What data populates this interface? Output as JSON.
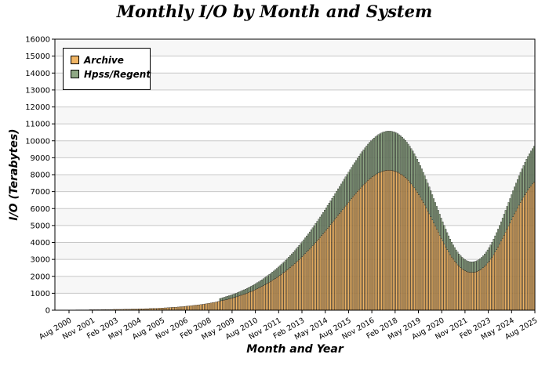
{
  "colors": {
    "archive": "#f0b565",
    "hpss": "#8fa885",
    "band_light": "#f7f7f7",
    "band_white": "#ffffff",
    "grid": "#c8c8c8"
  },
  "chart_data": {
    "type": "bar",
    "stacked": true,
    "title": "Monthly I/O by Month and System",
    "xlabel": "Month and Year",
    "ylabel": "I/O (Terabytes)",
    "ylim": [
      0,
      16000
    ],
    "yticks": [
      0,
      1000,
      2000,
      3000,
      4000,
      5000,
      6000,
      7000,
      8000,
      9000,
      10000,
      11000,
      12000,
      13000,
      14000,
      15000,
      16000
    ],
    "legend_position": "top-left",
    "x_tick_labels": [
      "Aug 2000",
      "Nov 2001",
      "Feb 2003",
      "May 2004",
      "Aug 2005",
      "Nov 2006",
      "Feb 2008",
      "May 2009",
      "Aug 2010",
      "Nov 2011",
      "Feb 2013",
      "May 2014",
      "Aug 2015",
      "Nov 2016",
      "Feb 2018",
      "May 2019",
      "Aug 2020",
      "Nov 2021",
      "Feb 2023",
      "May 2024",
      "Aug 2025"
    ],
    "x_start": "2000-08",
    "x_end": "2025-08",
    "series": [
      {
        "name": "Archive",
        "color": "#f0b565",
        "values": [
          0,
          0,
          0,
          0,
          10,
          10,
          10,
          10,
          10,
          10,
          10,
          10,
          10,
          10,
          20,
          20,
          20,
          20,
          20,
          20,
          20,
          20,
          20,
          30,
          30,
          30,
          30,
          30,
          30,
          30,
          30,
          40,
          40,
          40,
          40,
          40,
          40,
          40,
          40,
          50,
          50,
          50,
          50,
          50,
          50,
          50,
          60,
          60,
          60,
          60,
          60,
          70,
          70,
          70,
          70,
          70,
          80,
          80,
          80,
          80,
          90,
          90,
          90,
          100,
          100,
          100,
          110,
          110,
          110,
          120,
          120,
          130,
          130,
          140,
          140,
          150,
          150,
          160,
          170,
          170,
          180,
          180,
          190,
          200,
          210,
          210,
          220,
          230,
          240,
          250,
          260,
          270,
          280,
          290,
          300,
          310,
          320,
          330,
          340,
          360,
          370,
          380,
          400,
          410,
          430,
          450,
          460,
          480,
          500,
          520,
          540,
          560,
          580,
          600,
          620,
          640,
          670,
          690,
          710,
          740,
          760,
          790,
          820,
          850,
          880,
          910,
          940,
          970,
          1000,
          1040,
          1070,
          1110,
          1150,
          1190,
          1230,
          1270,
          1310,
          1360,
          1400,
          1450,
          1500,
          1550,
          1600,
          1650,
          1700,
          1760,
          1810,
          1870,
          1930,
          1990,
          2050,
          2110,
          2180,
          2240,
          2310,
          2380,
          2450,
          2520,
          2600,
          2670,
          2750,
          2830,
          2910,
          2990,
          3080,
          3160,
          3250,
          3340,
          3430,
          3520,
          3610,
          3710,
          3800,
          3900,
          4000,
          4100,
          4200,
          4300,
          4410,
          4510,
          4620,
          4720,
          4830,
          4940,
          5050,
          5160,
          5270,
          5380,
          5490,
          5600,
          5710,
          5820,
          5930,
          6040,
          6150,
          6260,
          6370,
          6480,
          6590,
          6700,
          6800,
          6910,
          7010,
          7110,
          7210,
          7310,
          7400,
          7490,
          7580,
          7660,
          7740,
          7810,
          7880,
          7940,
          8000,
          8050,
          8100,
          8140,
          8180,
          8210,
          8230,
          8250,
          8260,
          8260,
          8260,
          8250,
          8230,
          8210,
          8180,
          8140,
          8090,
          8040,
          7980,
          7910,
          7830,
          7750,
          7660,
          7560,
          7450,
          7340,
          7220,
          7090,
          6960,
          6820,
          6670,
          6520,
          6360,
          6200,
          6030,
          5860,
          5690,
          5510,
          5330,
          5150,
          4970,
          4790,
          4610,
          4430,
          4250,
          4080,
          3910,
          3740,
          3580,
          3430,
          3280,
          3140,
          3010,
          2890,
          2780,
          2680,
          2590,
          2510,
          2440,
          2380,
          2330,
          2290,
          2260,
          2240,
          2230,
          2230,
          2240,
          2260,
          2290,
          2330,
          2380,
          2440,
          2510,
          2590,
          2680,
          2780,
          2890,
          3010,
          3140,
          3280,
          3430,
          3580,
          3740,
          3910,
          4080,
          4250,
          4430,
          4610,
          4790,
          4970,
          5150,
          5330,
          5510,
          5690,
          5860,
          6030,
          6200,
          6360,
          6520,
          6670,
          6820,
          6960,
          7090,
          7220,
          7340,
          7450,
          7560
        ],
        "note_values": "estimated"
      }
    ]
  }
}
